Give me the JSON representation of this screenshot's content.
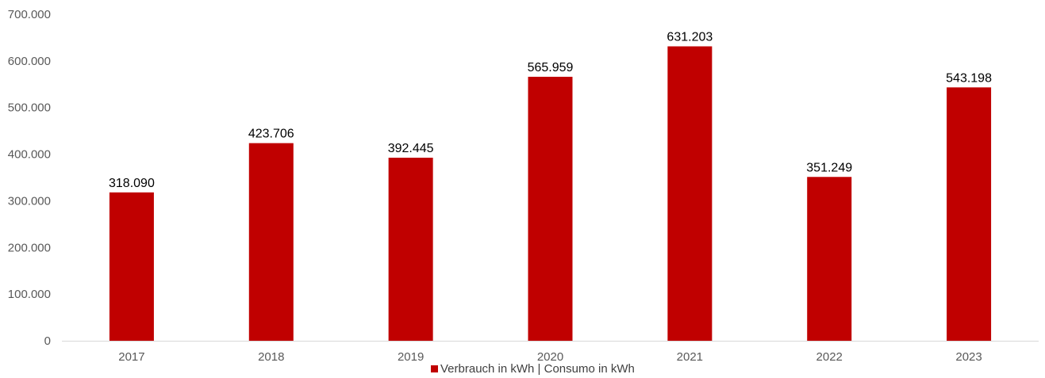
{
  "chart_data": {
    "type": "bar",
    "categories": [
      "2017",
      "2018",
      "2019",
      "2020",
      "2021",
      "2022",
      "2023"
    ],
    "series": [
      {
        "name": "Verbrauch in kWh | Consumo in kWh",
        "values": [
          318090,
          423706,
          392445,
          565959,
          631203,
          351249,
          543198
        ],
        "value_labels": [
          "318.090",
          "423.706",
          "392.445",
          "565.959",
          "631.203",
          "351.249",
          "543.198"
        ],
        "color": "#C00000"
      }
    ],
    "ylim": [
      0,
      700000
    ],
    "y_ticks": [
      0,
      100000,
      200000,
      300000,
      400000,
      500000,
      600000,
      700000
    ],
    "y_tick_labels": [
      "0",
      "100.000",
      "200.000",
      "300.000",
      "400.000",
      "500.000",
      "600.000",
      "700.000"
    ],
    "grid": false,
    "legend_position": "bottom"
  }
}
